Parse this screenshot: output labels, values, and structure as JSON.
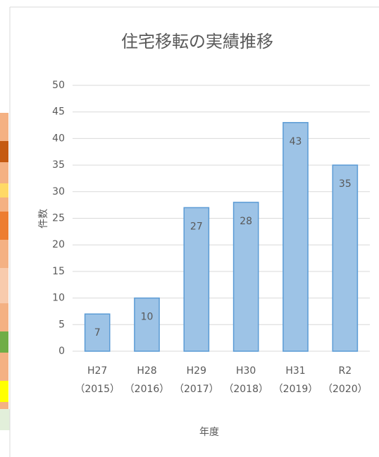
{
  "chart_data": {
    "type": "bar",
    "title": "住宅移転の実績推移",
    "categories": [
      "H27\n（2015）",
      "H28\n（2016）",
      "H29\n（2017）",
      "H30\n（2018）",
      "H31\n（2019）",
      "R2\n（2020）"
    ],
    "values": [
      7,
      10,
      27,
      28,
      43,
      35
    ],
    "color": "#9dc3e6",
    "edge_color": "#5b9bd5",
    "x_label": "年度",
    "y_label": "件数",
    "ylim": [
      0,
      50
    ],
    "yticks": [
      0,
      5,
      10,
      15,
      20,
      25,
      30,
      35,
      40,
      45,
      50
    ],
    "grid": true
  }
}
